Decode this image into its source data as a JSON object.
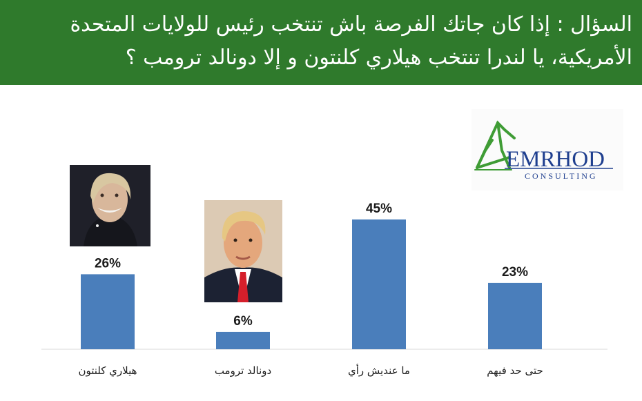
{
  "header": {
    "question": "السؤال : إذا كان جاتك الفرصة باش تنتخب رئيس للولايات المتحدة الأمريكية، يا لندرا تنتخب هيلاري كلنتون و إلا دونالد ترومب ؟",
    "background_color": "#2f7a2c"
  },
  "logo": {
    "word": "EMRHOD",
    "sub": "CONSULTING",
    "color": "#1f3f8f",
    "mark_color": "#3f9c35"
  },
  "chart_data": {
    "type": "bar",
    "categories": [
      "هيلاري كلنتون",
      "دونالد ترومب",
      "ما عنديش رأي",
      "حتى حد فيهم"
    ],
    "values": [
      26,
      6,
      45,
      23
    ],
    "value_labels": [
      "26%",
      "6%",
      "45%",
      "23%"
    ],
    "unit": "%",
    "bar_color": "#4a7ebb",
    "ylim": [
      0,
      50
    ],
    "grid": false,
    "legend": "none",
    "title": "",
    "xlabel": "",
    "ylabel": ""
  }
}
